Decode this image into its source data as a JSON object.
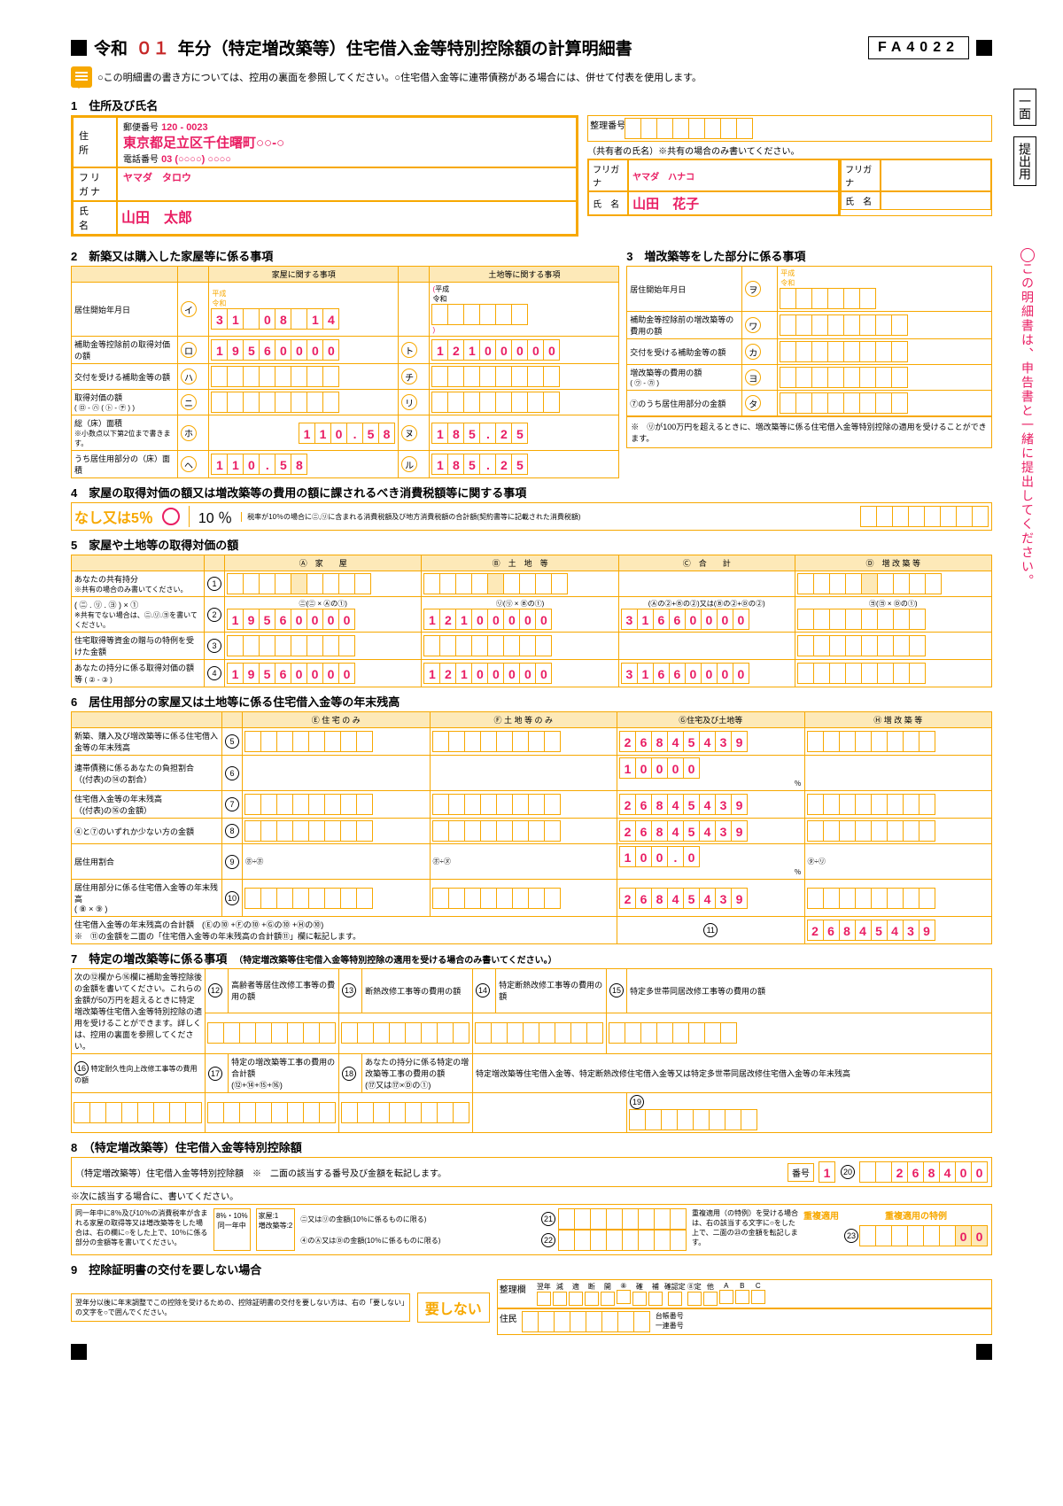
{
  "meta": {
    "form_code": "FA4022",
    "reiwa_year": "０１"
  },
  "title": "年分（特定増改築等）住宅借入金等特別控除額の計算明細書",
  "note_line": "○この明細書の書き方については、控用の裏面を参照してください。○住宅借入金等に連帯債務がある場合には、併せて付表を使用します。",
  "side": {
    "page": "一面",
    "purpose": "提出用",
    "right_note": "この明細書は、申告書と一緒に提出してください。"
  },
  "sec1": {
    "label": "1　住所及び氏名",
    "postal_lbl": "郵便番号",
    "postal": "120 - 0023",
    "address_lbl": "住　所",
    "address": "東京都足立区千住曙町○○-○",
    "tel_lbl": "電話番号",
    "tel": "03 (○○○○) ○○○○",
    "furigana_lbl": "フリガナ",
    "furigana": "ヤマダ　タロウ",
    "name_lbl": "氏　名",
    "name": "山田　太郎",
    "seiri_lbl": "整理番号",
    "coowner_note": "（共有者の氏名）※共有の場合のみ書いてください。",
    "co_furigana": "ヤマダ　ハナコ",
    "co_name": "山田　花子"
  },
  "sec2": {
    "label": "2　新築又は購入した家屋等に係る事項",
    "col_house": "家屋に関する事項",
    "col_land": "土地等に関する事項",
    "rows": {
      "r1": "居住開始年月日",
      "r2": "補助金等控除前の取得対価の額",
      "r3": "交付を受ける補助金等の額",
      "r4": "取得対価の額",
      "r4_sub": "( ㋺ - ㋩ ( ㋣ - ㋠ ) )",
      "r5": "総（床）面積",
      "r5_sub": "※小数点以下第2位まで書きます。",
      "r6": "うち居住用部分の（床）面積"
    },
    "era": "平成\n令和",
    "date": [
      "3",
      "1",
      "",
      "0",
      "8",
      "",
      "1",
      "4"
    ],
    "house_price": [
      "1",
      "9",
      "5",
      "6",
      "0",
      "0",
      "0",
      "0"
    ],
    "land_price": [
      "1",
      "2",
      "1",
      "0",
      "0",
      "0",
      "0",
      "0"
    ],
    "house_area": [
      "1",
      "1",
      "0",
      ".",
      "5",
      "8"
    ],
    "land_area": [
      "1",
      "8",
      "5",
      ".",
      "2",
      "5"
    ]
  },
  "sec3": {
    "label": "3　増改築等をした部分に係る事項",
    "rows": {
      "r1": "居住開始年月日",
      "r2": "補助金等控除前の増改築等の費用の額",
      "r3": "交付を受ける補助金等の額",
      "r4": "増改築等の費用の額",
      "r4_sub": "( ㋻ - ㋕ )",
      "r5": "⑦のうち居住用部分の金額"
    },
    "note": "※　㋷が100万円を超えるときに、増改築等に係る住宅借入金等特別控除の適用を受けることができます。"
  },
  "sec4": {
    "label": "4　家屋の取得対価の額又は増改築等の費用の額に課されるべき消費税額等に関する事項",
    "opt1": "なし又は5％",
    "opt2": "10 ％",
    "small": "税率が10％の場合に㋥,㋷に含まれる消費税額及び地方消費税額の合計額(契約書等に記載された消費税額)"
  },
  "sec5": {
    "label": "5　家屋や土地等の取得対価の額",
    "cols": [
      "Ⓐ　家　　屋",
      "Ⓑ　土　地　等",
      "Ⓒ　合　　計",
      "Ⓓ　増 改 築 等"
    ],
    "r1": "あなたの共有持分",
    "r1_sub": "※共有の場合のみ書いてください。",
    "r2": "( ㋥ . ㋷ . ㋵ ) × ①",
    "r2_sub": "※共有でない場合は、㋥.㋷.㋵を書いてください。",
    "r2_hdr": [
      "㋥(㋥ × Ⓐの①)",
      "㋷(㋷ × Ⓑの①)",
      "(Ⓐの②+Ⓑの②)又は(Ⓑの②+Ⓓの②)",
      "㋵(㋵ × Ⓓの①)"
    ],
    "r3": "住宅取得等資金の贈与の特例を受けた金額",
    "r4": "あなたの持分に係る取得対価の額等",
    "r4_sub": "( ② - ③ )",
    "vals": {
      "house": [
        "1",
        "9",
        "5",
        "6",
        "0",
        "0",
        "0",
        "0"
      ],
      "land": [
        "1",
        "2",
        "1",
        "0",
        "0",
        "0",
        "0",
        "0"
      ],
      "total": [
        "3",
        "1",
        "6",
        "6",
        "0",
        "0",
        "0",
        "0"
      ]
    }
  },
  "sec6": {
    "label": "6　居住用部分の家屋又は土地等に係る住宅借入金等の年末残高",
    "cols": [
      "Ⓔ 住 宅 の み",
      "Ⓕ 土 地 等 の み",
      "Ⓖ住宅及び土地等",
      "Ⓗ 増 改 築 等"
    ],
    "rows": [
      "新築、購入及び増改築等に係る住宅借入金等の年末残高",
      "連帯債務に係るあなたの負担割合\n（(付表)の⑭の割合）",
      "住宅借入金等の年末残高\n（(付表)の⑯の金額）",
      "④と⑦のいずれか少ない方の金額",
      "居住用割合",
      "居住用部分に係る住宅借入金等の年末残高\n( ⑧ × ⑨ )"
    ],
    "footnote": "住宅借入金等の年末残高の合計額　(Ⓔの⑩ +Ⓕの⑩ +Ⓖの⑩ +Ⓗの⑩)\n※　⑪の金額を二面の「住宅借入金等の年末残高の合計額⑪」欄に転記します。",
    "val_g": [
      "2",
      "6",
      "8",
      "4",
      "5",
      "4",
      "3",
      "9"
    ],
    "val_pct": [
      "1",
      "0",
      "0",
      "0",
      "0"
    ],
    "val_ratio": [
      "1",
      "0",
      "0",
      ".",
      "0"
    ],
    "val_11": [
      "2",
      "6",
      "8",
      "4",
      "5",
      "4",
      "3",
      "9"
    ]
  },
  "sec7": {
    "label": "7　特定の増改築等に係る事項",
    "sub": "（特定増改築等住宅借入金等特別控除の適用を受ける場合のみ書いてください。）",
    "left_note": "次の⑫欄から⑯欄に補助金等控除後の金額を書いてください。これらの金額が50万円を超えるときに特定増改築等住宅借入金等特別控除の適用を受けることができます。詳しくは、控用の裏面を参照してください。",
    "c12": "高齢者等居住改修工事等の費用の額",
    "c13": "断熱改修工事等の費用の額",
    "c14": "特定断熱改修工事等の費用の額",
    "c15": "特定多世帯同居改修工事等の費用の額",
    "c16": "特定耐久性向上改修工事等の費用の額",
    "c17": "特定の増改築等工事の費用の合計額\n(⑫+⑭+⑮+⑯)",
    "c18": "あなたの持分に係る特定の増改築等工事の費用の額\n(⑰又は⑰×Ⓓの①)",
    "c19_note": "特定増改築等住宅借入金等、特定断熱改修住宅借入金等又は特定多世帯同居改修住宅借入金等の年末残高"
  },
  "sec8": {
    "label": "8　（特定増改築等）住宅借入金等特別控除額",
    "line1": "（特定増改築等）住宅借入金等特別控除額　※　二面の該当する番号及び金額を転記します。",
    "bangou_lbl": "番号",
    "bangou": "1",
    "amount": [
      "2",
      "6",
      "8",
      "4",
      "0",
      "0"
    ],
    "note": "※次に該当する場合に、書いてください。",
    "left8": "同一年中に8％及び10％の消費税率が含まれる家屋の取得等又は増改築等をした場合は、右の欄に○をした上で、10％に係る部分の金額等を書いてください。",
    "mid8a": "8%・10%\n同一年中",
    "mid8b": "家屋:1\n増改築等:2",
    "c21": "㋥又は㋷の金額(10％に係るものに限る)",
    "c22": "④のⒶ又はⒹの金額(10％に係るものに限る)",
    "right8": "重複適用（の特例）を受ける場合は、右の該当する文字に○をした上で、二面の㉓の金額を転記します。",
    "dup1": "重複適用",
    "dup2": "重複適用の特例",
    "c23_val": "00"
  },
  "sec9": {
    "label": "9　控除証明書の交付を要しない場合",
    "text": "翌年分以後に年末調整でこの控除を受けるための、控除証明書の交付を要しない方は、右の「要しない」の文字を○で囲んでください。",
    "btn": "要しない",
    "seiri": "整理欄",
    "checks": [
      "翌年",
      "減",
      "適",
      "断",
      "開",
      "⑧",
      "確",
      "補",
      "確認定",
      "⑧定",
      "他",
      "A",
      "B",
      "C"
    ],
    "foot1": "住民",
    "foot2": "台帳番号\n一連番号"
  }
}
